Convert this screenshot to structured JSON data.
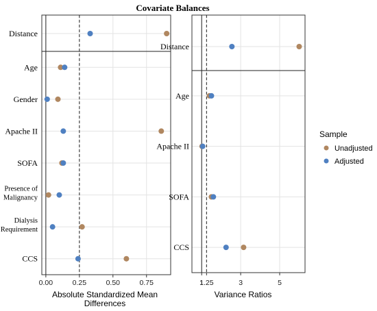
{
  "chart_data": {
    "type": "scatter",
    "title": "Covariate Balances",
    "legend": {
      "title": "Sample",
      "placement": "right",
      "entries": [
        {
          "name": "Unadjusted",
          "color": "#b08760"
        },
        {
          "name": "Adjusted",
          "color": "#4f80c1"
        }
      ]
    },
    "panels": [
      {
        "id": "smd",
        "xlabel_lines": [
          "Absolute Standardized Mean",
          "Differences"
        ],
        "xlim": [
          -0.03,
          0.93
        ],
        "scale": "linear",
        "xticks": [
          {
            "value": 0.0,
            "label": "0.00"
          },
          {
            "value": 0.25,
            "label": "0.25"
          },
          {
            "value": 0.5,
            "label": "0.50"
          },
          {
            "value": 0.75,
            "label": "0.75"
          }
        ],
        "threshold": 0.25,
        "reference": 0,
        "covariates": [
          {
            "label": [
              "Distance"
            ],
            "unadjusted": 0.9,
            "adjusted": 0.33
          },
          {
            "label": [
              "Age"
            ],
            "unadjusted": 0.11,
            "adjusted": 0.14
          },
          {
            "label": [
              "Gender"
            ],
            "unadjusted": 0.09,
            "adjusted": 0.01
          },
          {
            "label": [
              "Apache II"
            ],
            "unadjusted": 0.86,
            "adjusted": 0.13
          },
          {
            "label": [
              "SOFA"
            ],
            "unadjusted": 0.12,
            "adjusted": 0.13
          },
          {
            "label": [
              "Presence of",
              "Malignancy"
            ],
            "unadjusted": 0.02,
            "adjusted": 0.1
          },
          {
            "label": [
              "Dialysis",
              "Requirement"
            ],
            "unadjusted": 0.27,
            "adjusted": 0.05
          },
          {
            "label": [
              "CCS"
            ],
            "unadjusted": 0.6,
            "adjusted": 0.24
          }
        ]
      },
      {
        "id": "vr",
        "xlabel_lines": [
          "Variance Ratios"
        ],
        "xlim": [
          0.5,
          6.3
        ],
        "scale": "linear",
        "xticks": [
          {
            "value": 1,
            "label": "1"
          },
          {
            "value": 1.25,
            "label": "1.25"
          },
          {
            "value": 3,
            "label": "3"
          },
          {
            "value": 5,
            "label": "5"
          }
        ],
        "threshold": 1.25,
        "reference": 1,
        "covariates": [
          {
            "label": [
              "Distance"
            ],
            "unadjusted": 6.0,
            "adjusted": 2.55
          },
          {
            "label": [
              "Age"
            ],
            "unadjusted": 1.4,
            "adjusted": 1.5
          },
          {
            "label": [
              "Apache II"
            ],
            "unadjusted": 1.02,
            "adjusted": 1.05
          },
          {
            "label": [
              "SOFA"
            ],
            "unadjusted": 1.5,
            "adjusted": 1.6
          },
          {
            "label": [
              "CCS"
            ],
            "unadjusted": 3.15,
            "adjusted": 2.25
          }
        ]
      }
    ],
    "grid": true
  }
}
